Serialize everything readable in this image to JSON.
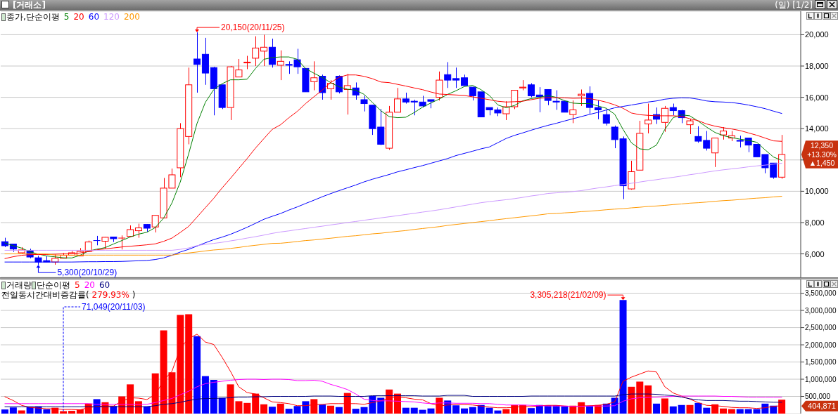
{
  "chart_data": [
    {
      "type": "candlestick",
      "title": "[거래소]",
      "subtitle": "(일) [1/2]",
      "legend_title": "종가,단순이평",
      "categories": [
        null,
        null,
        null,
        null,
        null,
        null,
        null,
        null,
        null,
        null,
        null,
        null,
        null,
        null,
        null,
        null,
        null,
        null,
        null,
        null,
        null,
        null,
        null,
        null,
        null,
        null,
        null,
        null,
        null,
        null,
        null,
        null,
        null,
        null,
        null,
        null,
        null,
        null,
        null,
        null,
        null,
        null,
        null,
        null,
        null,
        null,
        null,
        null,
        null,
        null,
        null,
        null,
        null,
        null,
        null,
        null,
        null,
        null,
        null,
        null,
        null,
        null,
        null,
        null,
        null,
        null,
        null,
        null,
        null,
        null,
        null,
        null,
        null,
        null,
        null,
        null,
        null,
        null,
        null,
        null,
        null,
        null,
        null,
        null,
        null,
        null,
        null,
        null,
        null,
        null,
        null,
        null,
        null,
        null
      ],
      "ohlc": [
        [
          6780,
          7030,
          6430,
          6520
        ],
        [
          6630,
          6640,
          6130,
          6310
        ],
        [
          6070,
          6430,
          6030,
          6250
        ],
        [
          6220,
          6330,
          5720,
          5800
        ],
        [
          5750,
          5880,
          5300,
          5480
        ],
        [
          5570,
          5850,
          5470,
          5480
        ],
        [
          5480,
          5960,
          5310,
          5720
        ],
        [
          5720,
          6060,
          5710,
          5910
        ],
        [
          5910,
          6180,
          5900,
          6070
        ],
        [
          5870,
          6370,
          5860,
          6160
        ],
        [
          6160,
          6850,
          6150,
          6760
        ],
        [
          6850,
          7150,
          6550,
          6840
        ],
        [
          6810,
          7070,
          6330,
          7060
        ],
        [
          7080,
          7090,
          6760,
          6970
        ],
        [
          7000,
          7180,
          6280,
          7010
        ],
        [
          7120,
          7820,
          7110,
          7550
        ],
        [
          7480,
          7930,
          7030,
          7660
        ],
        [
          7880,
          7890,
          7420,
          7640
        ],
        [
          7720,
          8470,
          7370,
          8460
        ],
        [
          8300,
          10850,
          8300,
          10200
        ],
        [
          10200,
          11450,
          10200,
          11050
        ],
        [
          11500,
          14350,
          10900,
          14000
        ],
        [
          13500,
          17900,
          13000,
          16800
        ],
        [
          18450,
          20150,
          16300,
          18100
        ],
        [
          18750,
          19800,
          16800,
          17550
        ],
        [
          17900,
          17950,
          14850,
          16550
        ],
        [
          16800,
          16800,
          15250,
          15350
        ],
        [
          15350,
          18000,
          14550,
          17950
        ],
        [
          17300,
          18450,
          17300,
          17750
        ],
        [
          18200,
          18650,
          17800,
          18250
        ],
        [
          18500,
          19900,
          18000,
          19150
        ],
        [
          18950,
          20000,
          18000,
          19200
        ],
        [
          19200,
          19750,
          17900,
          18100
        ],
        [
          18050,
          19000,
          17100,
          18300
        ],
        [
          18100,
          18300,
          17500,
          18050
        ],
        [
          18400,
          19100,
          17500,
          17950
        ],
        [
          17850,
          17850,
          16350,
          16350
        ],
        [
          17000,
          18300,
          16450,
          17250
        ],
        [
          17350,
          17450,
          15850,
          16300
        ],
        [
          16550,
          17100,
          15850,
          16900
        ],
        [
          17350,
          17400,
          16250,
          16350
        ],
        [
          16500,
          17500,
          14900,
          16750
        ],
        [
          16600,
          16950,
          15850,
          16150
        ],
        [
          15850,
          16100,
          15100,
          15600
        ],
        [
          15500,
          15500,
          13600,
          14000
        ],
        [
          14100,
          15250,
          12950,
          13000
        ],
        [
          12750,
          15450,
          12650,
          15050
        ],
        [
          15050,
          16600,
          15050,
          15900
        ],
        [
          15900,
          16300,
          15600,
          15700
        ],
        [
          15750,
          15850,
          14850,
          15700
        ],
        [
          15700,
          16100,
          15350,
          15450
        ],
        [
          15850,
          15850,
          15300,
          15750
        ],
        [
          16000,
          17650,
          15800,
          17100
        ],
        [
          17450,
          18250,
          16600,
          17100
        ],
        [
          17200,
          17900,
          16600,
          17100
        ],
        [
          17250,
          17450,
          16750,
          16750
        ],
        [
          16650,
          16650,
          15800,
          16100
        ],
        [
          16350,
          16350,
          14750,
          14750
        ],
        [
          15350,
          15350,
          14850,
          15200
        ],
        [
          15200,
          15350,
          14800,
          15000
        ],
        [
          14950,
          15750,
          14550,
          15400
        ],
        [
          15400,
          16450,
          15250,
          16450
        ],
        [
          16600,
          17100,
          16450,
          16650
        ],
        [
          16800,
          16900,
          16000,
          16100
        ],
        [
          16150,
          16650,
          15050,
          16050
        ],
        [
          16500,
          16500,
          15500,
          15800
        ],
        [
          15750,
          16450,
          15200,
          15700
        ],
        [
          15750,
          15800,
          15050,
          15050
        ],
        [
          14900,
          15800,
          14350,
          15200
        ],
        [
          16100,
          16500,
          15450,
          16200
        ],
        [
          16250,
          16700,
          14950,
          15350
        ],
        [
          15350,
          15800,
          14600,
          15200
        ],
        [
          14900,
          15250,
          14200,
          14350
        ],
        [
          14100,
          14200,
          12750,
          13300
        ],
        [
          13350,
          13500,
          9500,
          10350
        ],
        [
          10150,
          11950,
          10100,
          11250
        ],
        [
          11350,
          14500,
          11350,
          13700
        ],
        [
          14300,
          15600,
          13700,
          14550
        ],
        [
          14900,
          15350,
          14300,
          14600
        ],
        [
          14400,
          15450,
          13800,
          15300
        ],
        [
          15350,
          15600,
          14850,
          15150
        ],
        [
          15150,
          15200,
          14350,
          14700
        ],
        [
          14250,
          14600,
          13650,
          14500
        ],
        [
          13500,
          14150,
          13100,
          13200
        ],
        [
          13250,
          13850,
          12600,
          12750
        ],
        [
          12450,
          13400,
          11550,
          13400
        ],
        [
          13600,
          14100,
          13300,
          13850
        ],
        [
          13400,
          13850,
          13200,
          13550
        ],
        [
          13250,
          13550,
          12800,
          13200
        ],
        [
          13400,
          13400,
          12500,
          12950
        ],
        [
          13000,
          13000,
          12200,
          12200
        ],
        [
          12350,
          12350,
          11150,
          11500
        ],
        [
          11800,
          11800,
          10800,
          10900
        ],
        [
          10900,
          13600,
          10800,
          12350
        ]
      ],
      "colors": [
        "#0000ff",
        "#0000ff",
        "#ff0000",
        "#0000ff",
        "#0000ff",
        "#0000ff",
        "#ff0000",
        "#ff0000",
        "#ff0000",
        "#ff0000",
        "#ff0000",
        "#0000ff",
        "#ff0000",
        "#0000ff",
        "#ff0000",
        "#ff0000",
        "#ff0000",
        "#0000ff",
        "#ff0000",
        "#ff0000",
        "#ff0000",
        "#ff0000",
        "#ff0000",
        "#0000ff",
        "#0000ff",
        "#0000ff",
        "#0000ff",
        "#ff0000",
        "#ff0000",
        "#ff0000",
        "#ff0000",
        "#ff0000",
        "#0000ff",
        "#ff0000",
        "#0000ff",
        "#0000ff",
        "#0000ff",
        "#ff0000",
        "#0000ff",
        "#ff0000",
        "#0000ff",
        "#ff0000",
        "#0000ff",
        "#0000ff",
        "#0000ff",
        "#0000ff",
        "#ff0000",
        "#ff0000",
        "#0000ff",
        "#0000ff",
        "#0000ff",
        "#0000ff",
        "#ff0000",
        "#0000ff",
        "#0000ff",
        "#0000ff",
        "#0000ff",
        "#0000ff",
        "#0000ff",
        "#0000ff",
        "#ff0000",
        "#ff0000",
        "#ff0000",
        "#0000ff",
        "#0000ff",
        "#0000ff",
        "#0000ff",
        "#0000ff",
        "#ff0000",
        "#ff0000",
        "#0000ff",
        "#0000ff",
        "#0000ff",
        "#0000ff",
        "#0000ff",
        "#ff0000",
        "#ff0000",
        "#ff0000",
        "#0000ff",
        "#ff0000",
        "#0000ff",
        "#0000ff",
        "#ff0000",
        "#0000ff",
        "#0000ff",
        "#ff0000",
        "#ff0000",
        "#ff0000",
        "#0000ff",
        "#0000ff",
        "#0000ff",
        "#0000ff",
        "#0000ff",
        "#ff0000"
      ],
      "series": [
        {
          "type": "line",
          "name": "5",
          "color": "#008000",
          "values": [
            6700,
            6520,
            6370,
            6130,
            5990,
            5870,
            5810,
            5750,
            5740,
            5910,
            6180,
            6300,
            6400,
            6630,
            6850,
            7080,
            7260,
            7380,
            7680,
            8280,
            9250,
            10600,
            12390,
            14330,
            15680,
            16490,
            16870,
            17120,
            17120,
            17160,
            17840,
            18430,
            18540,
            18580,
            18580,
            18430,
            17840,
            17540,
            17270,
            16940,
            16670,
            16520,
            16460,
            16190,
            15670,
            15150,
            14770,
            14700,
            14730,
            15030,
            15370,
            15640,
            15890,
            16190,
            16420,
            16690,
            16760,
            16490,
            16120,
            15520,
            15330,
            15480,
            15780,
            15920,
            16000,
            16120,
            16000,
            15790,
            15630,
            15600,
            15600,
            15450,
            15300,
            14920,
            13950,
            13100,
            12710,
            12650,
            12950,
            13950,
            14700,
            14880,
            14820,
            14480,
            14100,
            13760,
            13550,
            13430,
            13330,
            13250,
            13130,
            12650,
            12190,
            11970
          ]
        },
        {
          "type": "line",
          "name": "20",
          "color": "#ff0000",
          "values": [
            5700,
            5820,
            5910,
            5950,
            5960,
            5960,
            5980,
            6000,
            6000,
            6060,
            6150,
            6260,
            6320,
            6380,
            6440,
            6490,
            6530,
            6580,
            6640,
            6800,
            7010,
            7370,
            7760,
            8350,
            8950,
            9550,
            10210,
            10820,
            11460,
            12090,
            12760,
            13360,
            13950,
            14250,
            14700,
            15100,
            15600,
            16040,
            16460,
            16940,
            17280,
            17430,
            17430,
            17340,
            17190,
            16980,
            16940,
            16830,
            16720,
            16600,
            16490,
            16340,
            16210,
            16180,
            16150,
            16120,
            16030,
            15940,
            15850,
            15750,
            15700,
            15720,
            15750,
            15850,
            15940,
            15980,
            15980,
            15970,
            15940,
            15950,
            15920,
            15820,
            15690,
            15520,
            15300,
            15000,
            14890,
            14850,
            14820,
            14820,
            14820,
            14790,
            14630,
            14510,
            14300,
            14160,
            14060,
            13980,
            13880,
            13730,
            13580,
            13400,
            13220,
            13190
          ]
        },
        {
          "type": "line",
          "name": "60",
          "color": "#0000ff",
          "values": [
            5480,
            5480,
            5480,
            5480,
            5480,
            5480,
            5480,
            5480,
            5480,
            5490,
            5500,
            5500,
            5510,
            5510,
            5520,
            5540,
            5560,
            5580,
            5640,
            5740,
            5910,
            6120,
            6290,
            6500,
            6710,
            6910,
            7070,
            7250,
            7470,
            7700,
            7950,
            8210,
            8400,
            8580,
            8800,
            9000,
            9220,
            9430,
            9650,
            9850,
            10040,
            10220,
            10400,
            10600,
            10770,
            10920,
            11070,
            11240,
            11370,
            11510,
            11640,
            11790,
            11940,
            12090,
            12280,
            12420,
            12560,
            12710,
            12830,
            13100,
            13370,
            13570,
            13730,
            13900,
            14060,
            14210,
            14340,
            14490,
            14630,
            14770,
            14910,
            15040,
            15190,
            15330,
            15420,
            15510,
            15600,
            15700,
            15770,
            15880,
            15940,
            15970,
            15960,
            15880,
            15770,
            15720,
            15700,
            15670,
            15600,
            15510,
            15400,
            15280,
            15120,
            14970
          ]
        },
        {
          "type": "line",
          "name": "120",
          "color": "#cc99ff",
          "values": [
            6230,
            6230,
            6230,
            6230,
            6230,
            6230,
            6230,
            6230,
            6230,
            6230,
            6230,
            6230,
            6230,
            6230,
            6230,
            6230,
            6230,
            6230,
            6230,
            6230,
            6230,
            6290,
            6380,
            6530,
            6610,
            6670,
            6740,
            6830,
            6910,
            7010,
            7100,
            7200,
            7310,
            7400,
            7470,
            7550,
            7620,
            7700,
            7770,
            7850,
            7920,
            8000,
            8070,
            8150,
            8220,
            8300,
            8370,
            8440,
            8520,
            8590,
            8670,
            8740,
            8820,
            8910,
            9000,
            9090,
            9180,
            9270,
            9340,
            9400,
            9460,
            9530,
            9610,
            9700,
            9770,
            9860,
            9900,
            9940,
            9980,
            10040,
            10130,
            10210,
            10280,
            10360,
            10430,
            10510,
            10590,
            10670,
            10740,
            10820,
            10890,
            10970,
            11060,
            11130,
            11220,
            11300,
            11370,
            11430,
            11490,
            11560,
            11620,
            11670,
            11730,
            11790
          ]
        },
        {
          "type": "line",
          "name": "200",
          "color": "#ff9900",
          "values": [
            6000,
            6000,
            6000,
            6000,
            6000,
            6000,
            5920,
            5920,
            5920,
            5920,
            5920,
            5920,
            5920,
            5920,
            5920,
            5920,
            5920,
            5920,
            5920,
            5920,
            5920,
            6000,
            6060,
            6120,
            6190,
            6250,
            6290,
            6350,
            6410,
            6490,
            6550,
            6610,
            6670,
            6680,
            6730,
            6790,
            6850,
            6890,
            6950,
            7000,
            7060,
            7120,
            7160,
            7220,
            7280,
            7320,
            7380,
            7440,
            7490,
            7560,
            7620,
            7680,
            7740,
            7820,
            7880,
            7940,
            8000,
            8060,
            8120,
            8190,
            8250,
            8310,
            8370,
            8430,
            8490,
            8560,
            8580,
            8620,
            8650,
            8700,
            8730,
            8770,
            8820,
            8860,
            8890,
            8940,
            8980,
            9030,
            9060,
            9100,
            9150,
            9190,
            9240,
            9270,
            9310,
            9360,
            9400,
            9430,
            9470,
            9520,
            9560,
            9590,
            9640,
            9680
          ]
        }
      ],
      "ylim": [
        4500,
        21500
      ],
      "yticks": [
        {
          "value": 6000,
          "label": "6,000"
        },
        {
          "value": 8000,
          "label": "8,000"
        },
        {
          "value": 10000,
          "label": "10,000"
        },
        {
          "value": 12000,
          "label": null
        },
        {
          "value": 14000,
          "label": "14,000"
        },
        {
          "value": 16000,
          "label": "16,000"
        },
        {
          "value": 18000,
          "label": "18,000"
        },
        {
          "value": 20000,
          "label": "20,000"
        }
      ],
      "grid": "y",
      "legend": "top left",
      "tick_labels": "y",
      "annotations": [
        "20,150(20/11/25)",
        "5,300(20/10/29)",
        "12,350",
        "+13.30%",
        "▲1,450"
      ]
    },
    {
      "type": "bar",
      "title": "거래량",
      "subtitle": "전일동시간대비증감률( 279.93% )",
      "legend_title": "단순이평",
      "categories": [
        null,
        null,
        null,
        null,
        null,
        null,
        null,
        null,
        null,
        null,
        null,
        null,
        null,
        null,
        null,
        null,
        null,
        null,
        null,
        null,
        null,
        null,
        null,
        null,
        null,
        null,
        null,
        null,
        null,
        null,
        null,
        null,
        null,
        null,
        null,
        null,
        null,
        null,
        null,
        null,
        null,
        null,
        null,
        null,
        null,
        null,
        null,
        null,
        null,
        null,
        null,
        null,
        null,
        null,
        null,
        null,
        null,
        null,
        null,
        null,
        null,
        null,
        null,
        null,
        null,
        null,
        null,
        null,
        null,
        null,
        null,
        null,
        null,
        null,
        null,
        null,
        null,
        null,
        null,
        null,
        null,
        null,
        null,
        null,
        null,
        null,
        null,
        null,
        null,
        null,
        null,
        null,
        null,
        null
      ],
      "series": [
        {
          "type": "bar",
          "colors": [
            "#0000ff",
            "#0000ff",
            "#ff0000",
            "#0000ff",
            "#0000ff",
            "#0000ff",
            "#ff0000",
            "#ff0000",
            "#ff0000",
            "#ff0000",
            "#ff0000",
            "#0000ff",
            "#ff0000",
            "#0000ff",
            "#ff0000",
            "#ff0000",
            "#ff0000",
            "#0000ff",
            "#ff0000",
            "#ff0000",
            "#ff0000",
            "#ff0000",
            "#ff0000",
            "#0000ff",
            "#0000ff",
            "#0000ff",
            "#0000ff",
            "#ff0000",
            "#ff0000",
            "#ff0000",
            "#ff0000",
            "#ff0000",
            "#0000ff",
            "#ff0000",
            "#0000ff",
            "#0000ff",
            "#0000ff",
            "#ff0000",
            "#0000ff",
            "#ff0000",
            "#0000ff",
            "#ff0000",
            "#0000ff",
            "#0000ff",
            "#0000ff",
            "#0000ff",
            "#ff0000",
            "#ff0000",
            "#0000ff",
            "#0000ff",
            "#0000ff",
            "#0000ff",
            "#ff0000",
            "#0000ff",
            "#0000ff",
            "#0000ff",
            "#0000ff",
            "#0000ff",
            "#0000ff",
            "#0000ff",
            "#ff0000",
            "#ff0000",
            "#ff0000",
            "#0000ff",
            "#0000ff",
            "#0000ff",
            "#0000ff",
            "#0000ff",
            "#ff0000",
            "#ff0000",
            "#0000ff",
            "#ff0000",
            "#0000ff",
            "#0000ff",
            "#0000ff",
            "#ff0000",
            "#ff0000",
            "#ff0000",
            "#0000ff",
            "#ff0000",
            "#0000ff",
            "#0000ff",
            "#ff0000",
            "#0000ff",
            "#0000ff",
            "#ff0000",
            "#ff0000",
            "#ff0000",
            "#0000ff",
            "#0000ff",
            "#0000ff",
            "#0000ff",
            "#0000ff",
            "#ff0000"
          ],
          "values": [
            120000,
            180000,
            90000,
            200000,
            210000,
            120000,
            170000,
            71049,
            80000,
            120000,
            290000,
            420000,
            330000,
            220000,
            500000,
            850000,
            360000,
            210000,
            1170000,
            2420000,
            1200000,
            2870000,
            2890000,
            2250000,
            1090000,
            980000,
            460000,
            850000,
            360000,
            310000,
            580000,
            270000,
            200000,
            290000,
            140000,
            220000,
            360000,
            420000,
            260000,
            230000,
            190000,
            600000,
            140000,
            190000,
            510000,
            460000,
            700000,
            580000,
            170000,
            170000,
            110000,
            150000,
            460000,
            380000,
            240000,
            150000,
            190000,
            250000,
            170000,
            90000,
            130000,
            250000,
            250000,
            160000,
            250000,
            240000,
            240000,
            210000,
            230000,
            330000,
            220000,
            250000,
            290000,
            460000,
            3305218,
            780000,
            930000,
            820000,
            290000,
            440000,
            210000,
            250000,
            250000,
            310000,
            170000,
            270000,
            150000,
            130000,
            130000,
            130000,
            130000,
            290000,
            230000,
            404871
          ]
        },
        {
          "type": "line",
          "name": "5",
          "color": "#ff0000",
          "values": [
            490000,
            380000,
            240000,
            180000,
            160000,
            140000,
            140000,
            120000,
            120000,
            110000,
            170000,
            210000,
            220000,
            220000,
            360000,
            460000,
            450000,
            410000,
            550000,
            960000,
            1230000,
            1910000,
            2180000,
            2310000,
            2080000,
            2010000,
            1640000,
            1230000,
            780000,
            610000,
            570000,
            460000,
            340000,
            320000,
            290000,
            230000,
            230000,
            260000,
            270000,
            290000,
            290000,
            290000,
            290000,
            270000,
            320000,
            370000,
            460000,
            480000,
            460000,
            420000,
            400000,
            290000,
            220000,
            250000,
            260000,
            260000,
            250000,
            220000,
            190000,
            170000,
            170000,
            180000,
            210000,
            200000,
            230000,
            240000,
            240000,
            220000,
            210000,
            220000,
            230000,
            240000,
            270000,
            340000,
            940000,
            1060000,
            1150000,
            1240000,
            1210000,
            780000,
            600000,
            510000,
            420000,
            320000,
            240000,
            230000,
            210000,
            180000,
            170000,
            170000,
            150000,
            170000,
            210000,
            230000
          ]
        },
        {
          "type": "line",
          "name": "20",
          "color": "#ff00ff",
          "values": [
            290000,
            290000,
            290000,
            290000,
            290000,
            290000,
            290000,
            290000,
            290000,
            290000,
            290000,
            270000,
            270000,
            270000,
            270000,
            270000,
            270000,
            270000,
            320000,
            380000,
            440000,
            550000,
            650000,
            780000,
            870000,
            910000,
            940000,
            970000,
            990000,
            1000000,
            1000000,
            990000,
            1000000,
            1000000,
            990000,
            960000,
            960000,
            970000,
            940000,
            850000,
            780000,
            700000,
            570000,
            420000,
            380000,
            370000,
            370000,
            360000,
            350000,
            340000,
            310000,
            290000,
            310000,
            310000,
            300000,
            300000,
            300000,
            290000,
            290000,
            270000,
            250000,
            250000,
            250000,
            240000,
            230000,
            220000,
            220000,
            220000,
            210000,
            210000,
            220000,
            220000,
            220000,
            230000,
            360000,
            430000,
            460000,
            470000,
            480000,
            490000,
            500000,
            510000,
            510000,
            510000,
            510000,
            510000,
            500000,
            500000,
            490000,
            480000,
            480000,
            480000,
            480000,
            480000
          ]
        },
        {
          "type": "line",
          "name": "60",
          "color": "#000080",
          "values": [
            200000,
            200000,
            200000,
            200000,
            200000,
            200000,
            200000,
            200000,
            200000,
            200000,
            200000,
            200000,
            200000,
            200000,
            200000,
            200000,
            200000,
            200000,
            230000,
            270000,
            290000,
            330000,
            380000,
            420000,
            440000,
            440000,
            450000,
            460000,
            480000,
            480000,
            490000,
            490000,
            500000,
            500000,
            500000,
            500000,
            500000,
            510000,
            510000,
            510000,
            500000,
            500000,
            500000,
            500000,
            520000,
            520000,
            520000,
            520000,
            520000,
            520000,
            510000,
            510000,
            510000,
            530000,
            530000,
            530000,
            500000,
            500000,
            500000,
            500000,
            500000,
            500000,
            500000,
            510000,
            510000,
            510000,
            510000,
            510000,
            510000,
            510000,
            510000,
            510000,
            510000,
            510000,
            550000,
            570000,
            570000,
            570000,
            560000,
            540000,
            520000,
            480000,
            430000,
            400000,
            380000,
            380000,
            380000,
            370000,
            360000,
            360000,
            350000,
            340000,
            330000,
            330000
          ]
        }
      ],
      "ylim": [
        0,
        3900000
      ],
      "yticks": [
        {
          "value": 500000,
          "label": "500,000"
        },
        {
          "value": 1000000,
          "label": "1,000,000"
        },
        {
          "value": 1500000,
          "label": "1,500,000"
        },
        {
          "value": 2000000,
          "label": "2,000,000"
        },
        {
          "value": 2500000,
          "label": "2,500,000"
        },
        {
          "value": 3000000,
          "label": "3,000,000"
        },
        {
          "value": 3500000,
          "label": "3,500,000"
        }
      ],
      "grid": "y",
      "legend": "top left",
      "tick_labels": "y",
      "annotations": [
        "3,305,218(21/02/09)",
        "71,049(20/11/03)",
        "404,871"
      ]
    }
  ]
}
